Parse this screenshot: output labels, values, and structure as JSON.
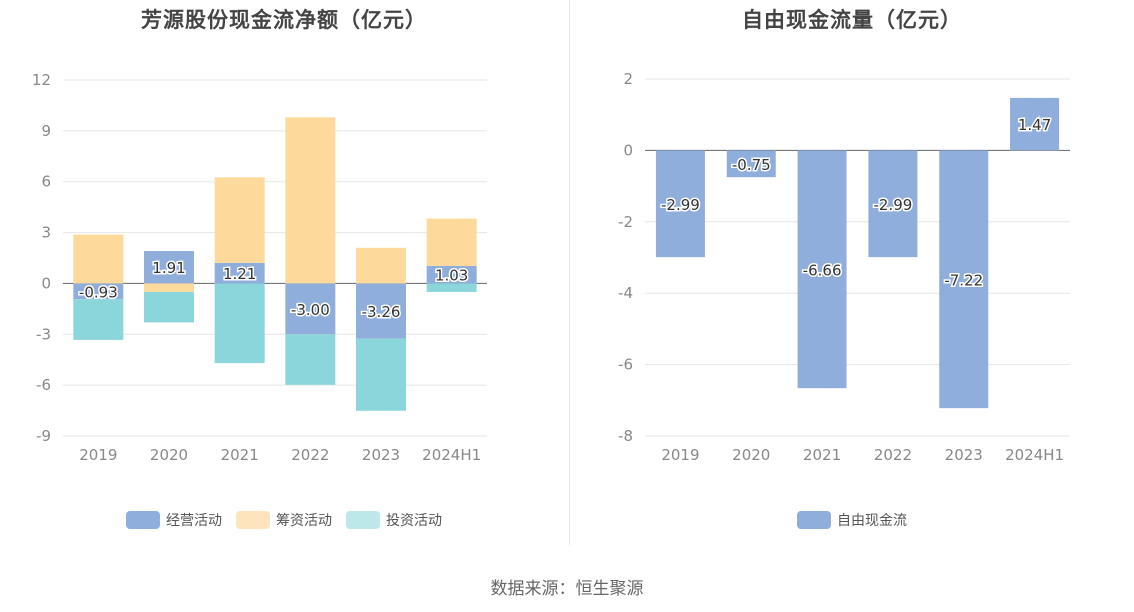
{
  "chart_data": [
    {
      "type": "bar",
      "stacked": true,
      "title": "芳源股份现金流净额（亿元）",
      "categories": [
        "2019",
        "2020",
        "2021",
        "2022",
        "2023",
        "2024H1"
      ],
      "ylim": [
        -9,
        12
      ],
      "yticks": [
        "12",
        "9",
        "6",
        "3",
        "0",
        "-3",
        "-6",
        "-9"
      ],
      "grid": true,
      "legend_position": "bottom",
      "series": [
        {
          "name": "经营活动",
          "color": "#8faedb",
          "values": [
            -0.93,
            1.91,
            1.21,
            -3.0,
            -3.26,
            1.03
          ],
          "labels": [
            "-0.93",
            "1.91",
            "1.21",
            "-3.00",
            "-3.26",
            "1.03"
          ]
        },
        {
          "name": "筹资活动",
          "color": "#fdd99c",
          "values": [
            2.88,
            -0.5,
            5.05,
            9.8,
            2.1,
            2.8
          ]
        },
        {
          "name": "投资活动",
          "color": "#8ad6da",
          "values": [
            -2.4,
            -1.8,
            -4.7,
            -2.98,
            -4.25,
            -0.5
          ]
        }
      ]
    },
    {
      "type": "bar",
      "title": "自由现金流量（亿元）",
      "categories": [
        "2019",
        "2020",
        "2021",
        "2022",
        "2023",
        "2024H1"
      ],
      "ylim": [
        -8,
        2
      ],
      "yticks": [
        "2",
        "0",
        "-2",
        "-4",
        "-6",
        "-8"
      ],
      "grid": true,
      "legend_position": "bottom",
      "series": [
        {
          "name": "自由现金流",
          "color": "#8faedb",
          "values": [
            -2.99,
            -0.75,
            -6.66,
            -2.99,
            -7.22,
            1.47
          ],
          "labels": [
            "-2.99",
            "-0.75",
            "-6.66",
            "-2.99",
            "-7.22",
            "1.47"
          ]
        }
      ]
    }
  ],
  "legend_left": [
    {
      "label": "经营活动",
      "color": "#8faedb"
    },
    {
      "label": "筹资活动",
      "color": "#fde4bc"
    },
    {
      "label": "投资活动",
      "color": "#bce8ea"
    }
  ],
  "legend_right": [
    {
      "label": "自由现金流",
      "color": "#8faedb"
    }
  ],
  "footer": {
    "source": "数据来源：恒生聚源"
  }
}
